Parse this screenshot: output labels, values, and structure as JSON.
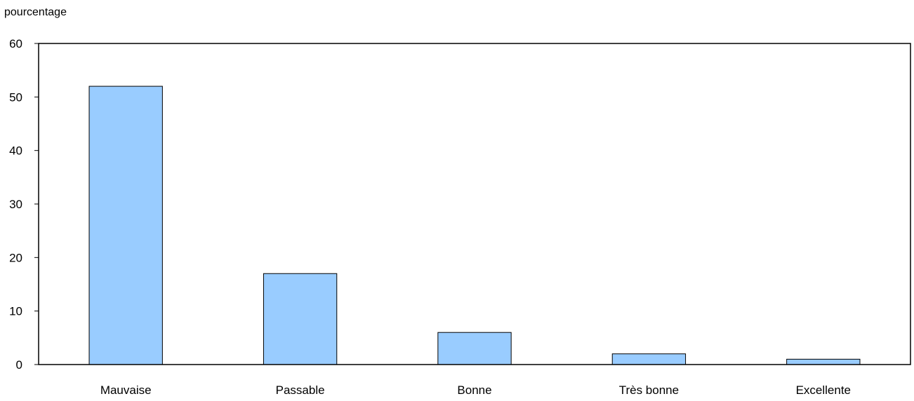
{
  "chart_data": {
    "type": "bar",
    "categories": [
      "Mauvaise",
      "Passable",
      "Bonne",
      "Très bonne",
      "Excellente"
    ],
    "values": [
      52,
      17,
      6,
      2,
      1
    ],
    "ylabel": "pourcentage",
    "xlabel": "",
    "ylim": [
      0,
      60
    ],
    "yticks": [
      "0",
      "10",
      "20",
      "30",
      "40",
      "50",
      "60"
    ],
    "grid": false,
    "bar_color": "#99ccff",
    "bar_edge_color": "#000000"
  }
}
